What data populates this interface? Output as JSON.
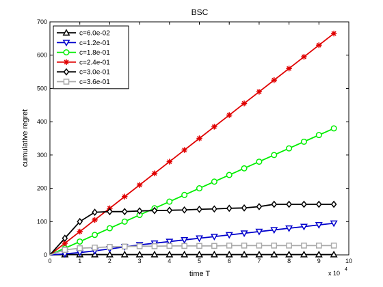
{
  "chart_data": {
    "type": "line",
    "title": "BSC",
    "xlabel": "time T",
    "ylabel": "cumulative regret",
    "x_multiplier_label": "x 10",
    "x_multiplier_exp": "4",
    "xlim": [
      0,
      10
    ],
    "ylim": [
      0,
      700
    ],
    "xticks": [
      "0",
      "1",
      "2",
      "3",
      "4",
      "5",
      "6",
      "7",
      "8",
      "9",
      "10"
    ],
    "yticks": [
      "0",
      "100",
      "200",
      "300",
      "400",
      "500",
      "600",
      "700"
    ],
    "grid": false,
    "legend_position": "top-left",
    "x": [
      0,
      0.5,
      1,
      1.5,
      2,
      2.5,
      3,
      3.5,
      4,
      4.5,
      5,
      5.5,
      6,
      6.5,
      7,
      7.5,
      8,
      8.5,
      9,
      9.5
    ],
    "series": [
      {
        "name": "c=6.0e-02",
        "color": "#000000",
        "marker": "triangle-up",
        "values": [
          0,
          1,
          1,
          1,
          1,
          1,
          1,
          1,
          1,
          1,
          1,
          1,
          1,
          1,
          1,
          1,
          1,
          1,
          1,
          1
        ]
      },
      {
        "name": "c=1.2e-01",
        "color": "#0000cc",
        "marker": "triangle-down",
        "values": [
          0,
          3,
          7,
          12,
          18,
          24,
          30,
          35,
          40,
          45,
          50,
          55,
          60,
          65,
          70,
          75,
          80,
          85,
          90,
          95
        ]
      },
      {
        "name": "c=1.8e-01",
        "color": "#00ee00",
        "marker": "circle",
        "values": [
          0,
          20,
          40,
          60,
          80,
          100,
          120,
          140,
          160,
          180,
          200,
          220,
          240,
          260,
          280,
          300,
          320,
          340,
          360,
          380
        ]
      },
      {
        "name": "c=2.4e-01",
        "color": "#e00000",
        "marker": "star",
        "values": [
          0,
          35,
          70,
          105,
          140,
          175,
          210,
          245,
          280,
          315,
          350,
          385,
          420,
          455,
          490,
          525,
          560,
          595,
          630,
          665
        ]
      },
      {
        "name": "c=3.0e-01",
        "color": "#000000",
        "marker": "diamond",
        "values": [
          0,
          50,
          100,
          128,
          130,
          130,
          132,
          133,
          134,
          135,
          137,
          138,
          140,
          141,
          145,
          152,
          152,
          152,
          152,
          152
        ]
      },
      {
        "name": "c=3.6e-01",
        "color": "#aaaaaa",
        "marker": "square",
        "values": [
          0,
          15,
          20,
          22,
          24,
          25,
          26,
          26,
          27,
          27,
          27,
          27,
          28,
          28,
          28,
          28,
          28,
          28,
          28,
          28
        ]
      }
    ]
  }
}
